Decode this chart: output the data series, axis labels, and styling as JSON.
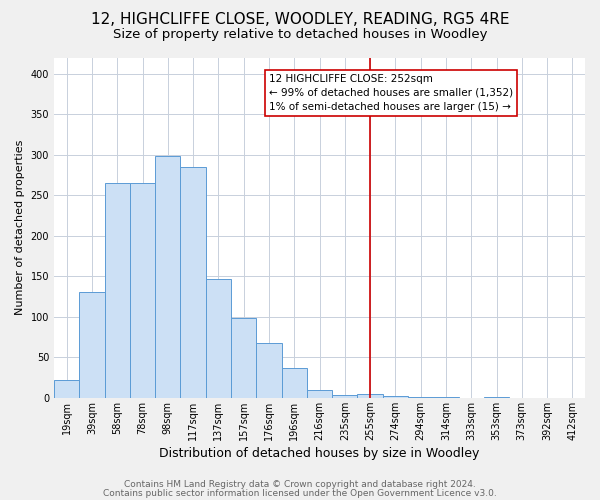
{
  "title": "12, HIGHCLIFFE CLOSE, WOODLEY, READING, RG5 4RE",
  "subtitle": "Size of property relative to detached houses in Woodley",
  "xlabel": "Distribution of detached houses by size in Woodley",
  "ylabel": "Number of detached properties",
  "bar_labels": [
    "19sqm",
    "39sqm",
    "58sqm",
    "78sqm",
    "98sqm",
    "117sqm",
    "137sqm",
    "157sqm",
    "176sqm",
    "196sqm",
    "216sqm",
    "235sqm",
    "255sqm",
    "274sqm",
    "294sqm",
    "314sqm",
    "333sqm",
    "353sqm",
    "373sqm",
    "392sqm",
    "412sqm"
  ],
  "bar_heights": [
    22,
    130,
    265,
    265,
    298,
    285,
    147,
    98,
    68,
    37,
    9,
    3,
    5,
    2,
    1,
    1,
    0,
    1,
    0,
    0,
    0
  ],
  "bar_color": "#cce0f5",
  "bar_edge_color": "#5b9bd5",
  "vline_x": 12,
  "vline_color": "#cc0000",
  "ylim": [
    0,
    420
  ],
  "annotation_box_text_line1": "12 HIGHCLIFFE CLOSE: 252sqm",
  "annotation_box_text_line2": "← 99% of detached houses are smaller (1,352)",
  "annotation_box_text_line3": "1% of semi-detached houses are larger (15) →",
  "footer_line1": "Contains HM Land Registry data © Crown copyright and database right 2024.",
  "footer_line2": "Contains public sector information licensed under the Open Government Licence v3.0.",
  "bg_color": "#f0f0f0",
  "plot_bg_color": "#ffffff",
  "grid_color": "#c8d0dc",
  "title_fontsize": 11,
  "subtitle_fontsize": 9.5,
  "xlabel_fontsize": 9,
  "ylabel_fontsize": 8,
  "tick_fontsize": 7,
  "footer_fontsize": 6.5,
  "ann_fontsize": 7.5
}
